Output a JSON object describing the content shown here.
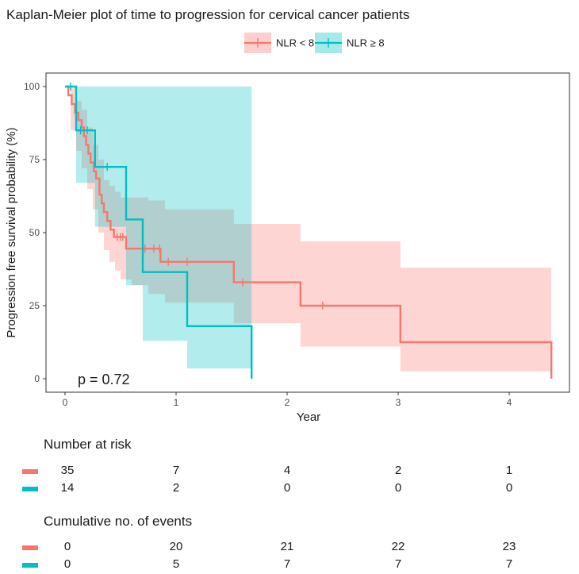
{
  "chart_data": {
    "type": "kaplan-meier",
    "title": "Kaplan-Meier plot of time to progression for cervical cancer patients",
    "xlabel": "Year",
    "ylabel": "Progression free survival probability (%)",
    "xlim": [
      0,
      4.5
    ],
    "ylim": [
      0,
      100
    ],
    "xticks": [
      0,
      1,
      2,
      3,
      4
    ],
    "yticks": [
      0,
      25,
      50,
      75,
      100
    ],
    "pvalue_label": "p = 0.72",
    "legend_position": "top",
    "series": [
      {
        "name": "NLR < 8",
        "color": "#F8766D",
        "steps": [
          [
            0,
            100
          ],
          [
            0.03,
            97
          ],
          [
            0.06,
            94
          ],
          [
            0.09,
            91
          ],
          [
            0.12,
            88.5
          ],
          [
            0.15,
            86
          ],
          [
            0.17,
            83
          ],
          [
            0.19,
            80
          ],
          [
            0.21,
            77
          ],
          [
            0.23,
            74
          ],
          [
            0.26,
            71
          ],
          [
            0.28,
            68.5
          ],
          [
            0.31,
            63
          ],
          [
            0.33,
            60
          ],
          [
            0.35,
            57
          ],
          [
            0.38,
            54
          ],
          [
            0.41,
            51
          ],
          [
            0.44,
            48.5
          ],
          [
            0.55,
            44.5
          ],
          [
            0.72,
            44.5
          ],
          [
            0.86,
            40
          ],
          [
            1.52,
            33
          ],
          [
            2.12,
            25
          ],
          [
            3.02,
            12.5
          ],
          [
            4.38,
            0
          ]
        ],
        "ci": [
          [
            0,
            100,
            100
          ],
          [
            0.05,
            100,
            85
          ],
          [
            0.1,
            95,
            78
          ],
          [
            0.15,
            92,
            72
          ],
          [
            0.2,
            86,
            65
          ],
          [
            0.25,
            80,
            58
          ],
          [
            0.3,
            75,
            50
          ],
          [
            0.35,
            68,
            44
          ],
          [
            0.4,
            66,
            40
          ],
          [
            0.45,
            64,
            37
          ],
          [
            0.5,
            62,
            34
          ],
          [
            0.6,
            62,
            32
          ],
          [
            0.75,
            61,
            29
          ],
          [
            0.9,
            58,
            26
          ],
          [
            1.52,
            53,
            19
          ],
          [
            2.12,
            47,
            11
          ],
          [
            3.02,
            38,
            2.5
          ],
          [
            4.38,
            38,
            0.5
          ]
        ],
        "censored": [
          [
            0.47,
            48.5
          ],
          [
            0.5,
            48.5
          ],
          [
            0.52,
            48.5
          ],
          [
            0.72,
            44.5
          ],
          [
            0.8,
            44.5
          ],
          [
            0.85,
            44.5
          ],
          [
            0.93,
            40
          ],
          [
            1.1,
            40
          ],
          [
            1.6,
            33
          ],
          [
            2.32,
            25
          ]
        ]
      },
      {
        "name": "NLR ≥ 8",
        "color": "#00BFC4",
        "steps": [
          [
            0,
            100
          ],
          [
            0.1,
            85
          ],
          [
            0.27,
            72.5
          ],
          [
            0.55,
            54.5
          ],
          [
            0.7,
            36.5
          ],
          [
            1.1,
            18
          ],
          [
            1.68,
            0
          ]
        ],
        "ci": [
          [
            0,
            100,
            100
          ],
          [
            0.1,
            100,
            67
          ],
          [
            0.27,
            100,
            52
          ],
          [
            0.55,
            100,
            32
          ],
          [
            0.7,
            100,
            13
          ],
          [
            1.1,
            100,
            3.5
          ],
          [
            1.68,
            100,
            0.5
          ]
        ],
        "censored": [
          [
            0.05,
            100
          ],
          [
            0.14,
            85
          ],
          [
            0.2,
            85
          ],
          [
            0.38,
            72.5
          ]
        ]
      }
    ],
    "risk_table": {
      "title": "Number at risk",
      "times": [
        0,
        1,
        2,
        3,
        4
      ],
      "rows": [
        {
          "group": "NLR < 8",
          "color": "#F8766D",
          "values": [
            "35",
            "7",
            "4",
            "2",
            "1"
          ]
        },
        {
          "group": "NLR ≥ 8",
          "color": "#00BFC4",
          "values": [
            "14",
            "2",
            "0",
            "0",
            "0"
          ]
        }
      ]
    },
    "events_table": {
      "title": "Cumulative no. of events",
      "times": [
        0,
        1,
        2,
        3,
        4
      ],
      "rows": [
        {
          "group": "NLR < 8",
          "color": "#F8766D",
          "values": [
            "0",
            "20",
            "21",
            "22",
            "23"
          ]
        },
        {
          "group": "NLR ≥ 8",
          "color": "#00BFC4",
          "values": [
            "0",
            "5",
            "7",
            "7",
            "7"
          ]
        }
      ]
    }
  }
}
